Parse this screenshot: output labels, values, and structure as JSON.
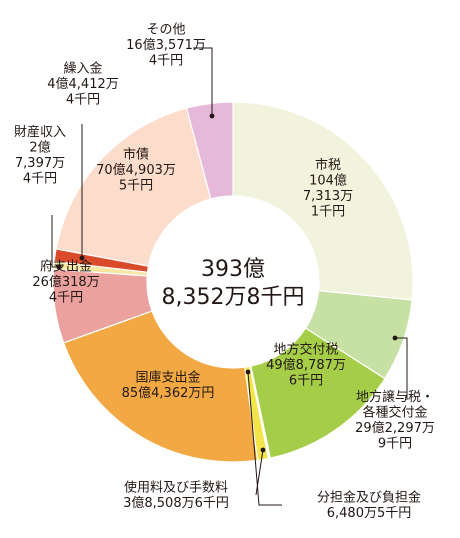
{
  "chart_data": {
    "type": "pie",
    "variant": "donut",
    "center_label": [
      "393億",
      "8,352万8千円"
    ],
    "slices": [
      {
        "name": "市税",
        "value": 1047313,
        "color": "#f1f3dd",
        "label_lines": [
          "市税",
          "104億",
          "7,313万",
          "1千円"
        ]
      },
      {
        "name": "地方譲与税・各種交付金",
        "value": 292297.9,
        "color": "#c7e0a4",
        "label_lines": [
          "地方譲与税・",
          "各種交付金",
          "29億2,297万",
          "9千円"
        ]
      },
      {
        "name": "地方交付税",
        "value": 498787.6,
        "color": "#a5cd48",
        "label_lines": [
          "地方交付税",
          "49億8,787万",
          "6千円"
        ]
      },
      {
        "name": "分担金及び負担金",
        "value": 6480.5,
        "color": "#ffffff",
        "label_lines": [
          "分担金及び負担金",
          "6,480万5千円"
        ]
      },
      {
        "name": "使用料及び手数料",
        "value": 38508.6,
        "color": "#f1e54a",
        "label_lines": [
          "使用料及び手数料",
          "3億8,508万6千円"
        ]
      },
      {
        "name": "国庫支出金",
        "value": 854362,
        "color": "#f2a944",
        "label_lines": [
          "国庫支出金",
          "85億4,362万円"
        ]
      },
      {
        "name": "府支出金",
        "value": 260318,
        "color": "#eba29f",
        "label_lines": [
          "府支出金",
          "26億318万",
          "4千円"
        ]
      },
      {
        "name": "財産収入",
        "value": 27397.4,
        "color": "#f7e7a4",
        "label_lines": [
          "財産収入",
          "2億",
          "7,397万",
          "4千円"
        ]
      },
      {
        "name": "繰入金",
        "value": 44412.4,
        "color": "#da4b2c",
        "label_lines": [
          "繰入金",
          "4億4,412万",
          "4千円"
        ]
      },
      {
        "name": "市債",
        "value": 704903.5,
        "color": "#fcdccb",
        "label_lines": [
          "市債",
          "70億4,903万",
          "5千円"
        ]
      },
      {
        "name": "その他",
        "value": 163571.4,
        "color": "#e6b8d9",
        "label_lines": [
          "その他",
          "16億3,571万",
          "4千円"
        ]
      }
    ]
  }
}
